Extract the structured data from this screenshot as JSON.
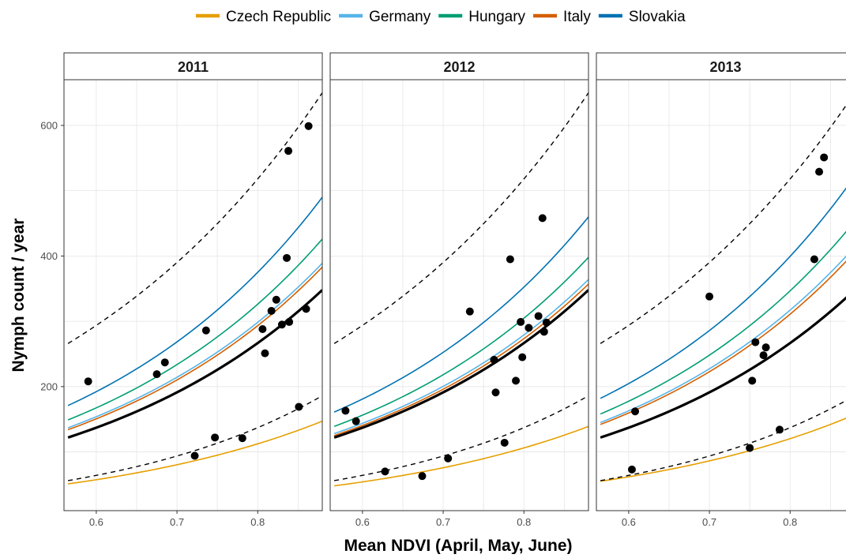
{
  "colors": {
    "Czech Republic": "#E69F00",
    "Germany": "#56B4E9",
    "Hungary": "#009E73",
    "Italy": "#D55E00",
    "Slovakia": "#0072B2",
    "overall": "#000000",
    "points": "#000000"
  },
  "chart_data": {
    "type": "scatter",
    "xlabel": "Mean NDVI (April, May, June)",
    "ylabel": "Nymph count / year",
    "xlim": [
      0.56,
      0.88
    ],
    "ylim": [
      10,
      670
    ],
    "x_ticks": [
      0.6,
      0.7,
      0.8
    ],
    "y_ticks": [
      200,
      400,
      600
    ],
    "grid": true,
    "legend": {
      "position": "top",
      "entries": [
        "Czech Republic",
        "Germany",
        "Hungary",
        "Italy",
        "Slovakia"
      ]
    },
    "panels": [
      {
        "title": "2011",
        "x_range": [
          0.565,
          0.88
        ],
        "lines": [
          {
            "name": "Slovakia",
            "y0": 171,
            "y1": 490
          },
          {
            "name": "Hungary",
            "y0": 149,
            "y1": 426
          },
          {
            "name": "Germany",
            "y0": 137,
            "y1": 389
          },
          {
            "name": "Italy",
            "y0": 134,
            "y1": 383
          },
          {
            "name": "Czech Republic",
            "y0": 51,
            "y1": 147
          },
          {
            "name": "overall",
            "y0": 122,
            "y1": 348
          },
          {
            "name": "upper-bound",
            "y0": 266,
            "y1": 650
          },
          {
            "name": "lower-bound",
            "y0": 56,
            "y1": 186
          }
        ],
        "points": [
          [
            0.59,
            208
          ],
          [
            0.675,
            219
          ],
          [
            0.685,
            237
          ],
          [
            0.722,
            94
          ],
          [
            0.736,
            286
          ],
          [
            0.747,
            122
          ],
          [
            0.781,
            121
          ],
          [
            0.806,
            288
          ],
          [
            0.809,
            251
          ],
          [
            0.817,
            316
          ],
          [
            0.823,
            333
          ],
          [
            0.83,
            295
          ],
          [
            0.836,
            397
          ],
          [
            0.838,
            561
          ],
          [
            0.839,
            299
          ],
          [
            0.851,
            169
          ],
          [
            0.86,
            319
          ],
          [
            0.863,
            599
          ]
        ]
      },
      {
        "title": "2012",
        "x_range": [
          0.565,
          0.88
        ],
        "lines": [
          {
            "name": "Slovakia",
            "y0": 161,
            "y1": 460
          },
          {
            "name": "Hungary",
            "y0": 139,
            "y1": 398
          },
          {
            "name": "Germany",
            "y0": 128,
            "y1": 364
          },
          {
            "name": "Italy",
            "y0": 125,
            "y1": 357
          },
          {
            "name": "Czech Republic",
            "y0": 48,
            "y1": 139
          },
          {
            "name": "overall",
            "y0": 122,
            "y1": 348
          },
          {
            "name": "upper-bound",
            "y0": 266,
            "y1": 650
          },
          {
            "name": "lower-bound",
            "y0": 56,
            "y1": 186
          }
        ],
        "points": [
          [
            0.579,
            163
          ],
          [
            0.592,
            147
          ],
          [
            0.628,
            70
          ],
          [
            0.674,
            63
          ],
          [
            0.706,
            90
          ],
          [
            0.733,
            315
          ],
          [
            0.763,
            241
          ],
          [
            0.765,
            191
          ],
          [
            0.776,
            114
          ],
          [
            0.783,
            395
          ],
          [
            0.79,
            209
          ],
          [
            0.796,
            299
          ],
          [
            0.798,
            245
          ],
          [
            0.806,
            290
          ],
          [
            0.818,
            308
          ],
          [
            0.823,
            458
          ],
          [
            0.825,
            284
          ],
          [
            0.828,
            298
          ]
        ]
      },
      {
        "title": "2013",
        "x_range": [
          0.565,
          0.88
        ],
        "lines": [
          {
            "name": "Slovakia",
            "y0": 182,
            "y1": 522
          },
          {
            "name": "Hungary",
            "y0": 158,
            "y1": 453
          },
          {
            "name": "Germany",
            "y0": 145,
            "y1": 414
          },
          {
            "name": "Italy",
            "y0": 142,
            "y1": 406
          },
          {
            "name": "Czech Republic",
            "y0": 55,
            "y1": 157
          },
          {
            "name": "overall",
            "y0": 122,
            "y1": 348
          },
          {
            "name": "upper-bound",
            "y0": 266,
            "y1": 650
          },
          {
            "name": "lower-bound",
            "y0": 56,
            "y1": 186
          }
        ],
        "points": [
          [
            0.604,
            73
          ],
          [
            0.608,
            162
          ],
          [
            0.7,
            338
          ],
          [
            0.75,
            106
          ],
          [
            0.753,
            209
          ],
          [
            0.757,
            268
          ],
          [
            0.767,
            248
          ],
          [
            0.77,
            260
          ],
          [
            0.787,
            134
          ],
          [
            0.83,
            395
          ],
          [
            0.836,
            529
          ],
          [
            0.842,
            551
          ]
        ]
      }
    ]
  }
}
